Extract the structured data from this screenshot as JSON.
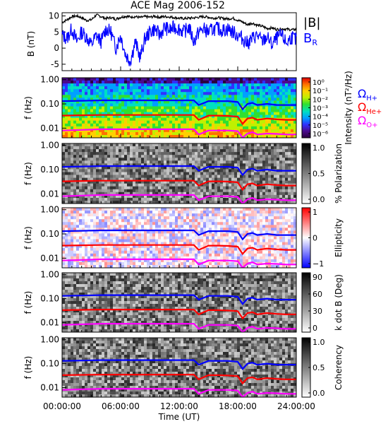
{
  "title": "ACE Mag 2006-152",
  "x_axis": {
    "label": "Time (UT)",
    "ticks": [
      "00:00:00",
      "06:00:00",
      "12:00:00",
      "18:00:00",
      "24:00:00"
    ],
    "range_hours": [
      0,
      24
    ]
  },
  "chart_data": [
    {
      "type": "line",
      "panel": "field",
      "ylabel": "B (nT)",
      "yticks": [
        -5,
        0,
        5,
        10
      ],
      "ylim": [
        -7,
        11
      ],
      "series": [
        {
          "name": "|B|",
          "color": "#000000",
          "x": [
            0,
            0.5,
            1,
            1.5,
            2,
            2.5,
            3,
            3.5,
            4,
            4.5,
            5,
            5.5,
            6,
            6.5,
            7,
            7.5,
            8,
            8.5,
            9,
            9.5,
            10,
            10.5,
            11,
            11.5,
            12,
            12.5,
            13,
            13.5,
            14,
            14.5,
            15,
            15.5,
            16,
            16.5,
            17,
            17.5,
            18,
            18.5,
            19,
            19.5,
            20,
            20.5,
            21,
            21.5,
            22,
            22.5,
            23,
            23.5,
            24
          ],
          "y": [
            8.0,
            8.8,
            9.8,
            10.0,
            9.5,
            8.6,
            8.8,
            10.3,
            9.8,
            9.2,
            9.5,
            9.0,
            9.6,
            9.9,
            9.7,
            9.8,
            9.5,
            9.8,
            9.6,
            9.9,
            9.6,
            9.8,
            9.7,
            9.5,
            9.3,
            9.2,
            9.3,
            9.4,
            9.6,
            9.8,
            9.6,
            9.3,
            9.5,
            9.2,
            9.1,
            9.3,
            8.7,
            8.1,
            7.3,
            7.8,
            7.1,
            6.8,
            6.1,
            6.3,
            5.8,
            6.0,
            5.9,
            5.7,
            5.8
          ]
        },
        {
          "name": "B_R",
          "color": "#0000ff",
          "x": [
            0,
            0.5,
            1,
            1.5,
            2,
            2.5,
            3,
            3.5,
            4,
            4.5,
            5,
            5.5,
            6,
            6.5,
            7,
            7.5,
            8,
            8.5,
            9,
            9.5,
            10,
            10.5,
            11,
            11.5,
            12,
            12.5,
            13,
            13.5,
            14,
            14.5,
            15,
            15.5,
            16,
            16.5,
            17,
            17.5,
            18,
            18.5,
            19,
            19.5,
            20,
            20.5,
            21,
            21.5,
            22,
            22.5,
            23,
            23.5,
            24
          ],
          "y": [
            4.0,
            3.0,
            6.0,
            2.0,
            5.0,
            3.5,
            1.0,
            4.0,
            2.0,
            6.0,
            5.0,
            0.0,
            4.0,
            -2.0,
            -4.0,
            2.0,
            -3.0,
            3.0,
            5.0,
            6.0,
            4.0,
            6.5,
            5.5,
            6.5,
            6.0,
            5.0,
            6.5,
            2.0,
            5.0,
            6.0,
            5.0,
            6.0,
            6.0,
            5.5,
            6.0,
            5.0,
            4.0,
            3.0,
            1.5,
            3.0,
            4.0,
            2.0,
            3.5,
            1.0,
            3.0,
            4.0,
            1.5,
            3.5,
            2.5
          ]
        }
      ],
      "legend": [
        "|B|",
        "B_R"
      ]
    },
    {
      "type": "heatmap",
      "panel": "power",
      "ylabel": "f (Hz)",
      "yscale": "log",
      "yticks": [
        "1.00",
        "0.10",
        "0.01"
      ],
      "ylim_hz": [
        0.004,
        1.2
      ],
      "colorbar": {
        "label": "Intensity (nT²/Hz)",
        "ticks": [
          "10⁰",
          "10⁻¹",
          "10⁻²",
          "10⁻³",
          "10⁻⁴",
          "10⁻⁵",
          "10⁻⁶"
        ],
        "colors": [
          "#2a0040",
          "#4b0a8c",
          "#3030ff",
          "#00a0ff",
          "#00e0c0",
          "#30e030",
          "#c0f000",
          "#ffd000",
          "#ff7000",
          "#e00000"
        ]
      },
      "overlays": [
        {
          "name": "Ω_H+",
          "color": "#0000ff"
        },
        {
          "name": "Ω_He+",
          "color": "#ff0000"
        },
        {
          "name": "Ω_O+",
          "color": "#ff00ff"
        }
      ]
    },
    {
      "type": "heatmap",
      "panel": "polarization",
      "ylabel": "f (Hz)",
      "yticks": [
        "1.00",
        "0.10",
        "0.01"
      ],
      "colorbar": {
        "label": "% Polarization",
        "ticks": [
          "1.0",
          "0.5",
          "0.0"
        ],
        "colors": [
          "#000000",
          "#ffffff"
        ]
      }
    },
    {
      "type": "heatmap",
      "panel": "ellipticity",
      "ylabel": "f (Hz)",
      "yticks": [
        "1.00",
        "0.10",
        "0.01"
      ],
      "colorbar": {
        "label": "Ellipticity",
        "ticks": [
          "1",
          "0",
          "−1"
        ],
        "colors": [
          "#ff0000",
          "#ffffff",
          "#0000ff"
        ]
      }
    },
    {
      "type": "heatmap",
      "panel": "kdotb",
      "ylabel": "f (Hz)",
      "yticks": [
        "1.00",
        "0.10",
        "0.01"
      ],
      "colorbar": {
        "label": "k dot B (Deg)",
        "ticks": [
          "90",
          "60",
          "30",
          "0"
        ],
        "colors": [
          "#000000",
          "#ffffff"
        ]
      }
    },
    {
      "type": "heatmap",
      "panel": "coherency",
      "ylabel": "f (Hz)",
      "yticks": [
        "1.00",
        "0.10",
        "0.01"
      ],
      "colorbar": {
        "label": "Coherency",
        "ticks": [
          "1.0",
          "0.5",
          "0.0"
        ],
        "colors": [
          "#000000",
          "#ffffff"
        ]
      }
    }
  ],
  "gyrofrequency_traces": {
    "x_hours": [
      0,
      2,
      4,
      6,
      8,
      10,
      12,
      13.5,
      14,
      15,
      16,
      17,
      18,
      18.5,
      19,
      19.5,
      20,
      21,
      22,
      23,
      24
    ],
    "H+": [
      0.13,
      0.135,
      0.14,
      0.14,
      0.14,
      0.14,
      0.14,
      0.14,
      0.09,
      0.13,
      0.13,
      0.13,
      0.12,
      0.06,
      0.1,
      0.11,
      0.09,
      0.1,
      0.09,
      0.09,
      0.09
    ],
    "He+": [
      0.033,
      0.034,
      0.035,
      0.035,
      0.035,
      0.035,
      0.035,
      0.035,
      0.022,
      0.033,
      0.033,
      0.032,
      0.03,
      0.015,
      0.025,
      0.027,
      0.022,
      0.025,
      0.023,
      0.022,
      0.022
    ],
    "O+": [
      0.008,
      0.0085,
      0.009,
      0.009,
      0.009,
      0.009,
      0.009,
      0.009,
      0.0055,
      0.008,
      0.008,
      0.008,
      0.0075,
      0.004,
      0.006,
      0.0068,
      0.0055,
      0.006,
      0.0058,
      0.0055,
      0.0055
    ]
  }
}
